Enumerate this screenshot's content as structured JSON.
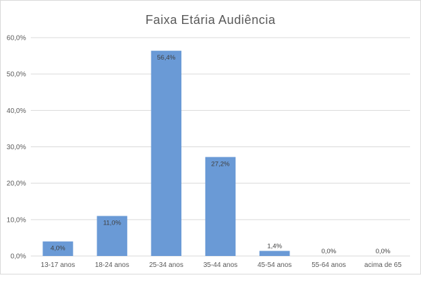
{
  "chart_data": {
    "type": "bar",
    "title": "Faixa Etária Audiência",
    "xlabel": "",
    "ylabel": "",
    "categories": [
      "13-17 anos",
      "18-24 anos",
      "25-34 anos",
      "35-44 anos",
      "45-54 anos",
      "55-64 anos",
      "acima de 65"
    ],
    "values": [
      4.0,
      11.0,
      56.4,
      27.2,
      1.4,
      0.0,
      0.0
    ],
    "value_labels": [
      "4,0%",
      "11,0%",
      "56,4%",
      "27,2%",
      "1,4%",
      "0,0%",
      "0,0%"
    ],
    "ylim": [
      0,
      60
    ],
    "yticks": [
      0,
      10,
      20,
      30,
      40,
      50,
      60
    ],
    "ytick_labels": [
      "0,0%",
      "10,0%",
      "20,0%",
      "30,0%",
      "40,0%",
      "50,0%",
      "60,0%"
    ],
    "grid": true,
    "legend": "none",
    "bar_color": "#6a9ad6",
    "grid_color": "#d9d9d9"
  }
}
